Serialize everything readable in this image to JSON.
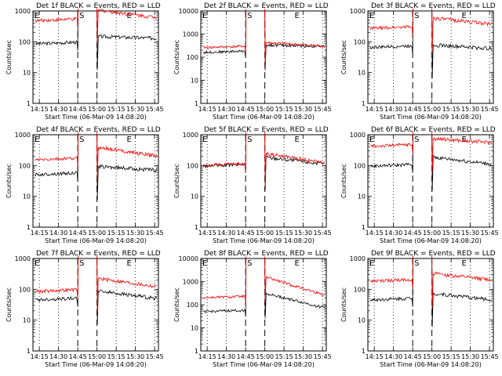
{
  "figure": {
    "ylabel": "Counts/sec",
    "xlabel": "Start Time (06-Mar-09 14:08:20)",
    "xticks": [
      "14:15",
      "14:30",
      "14:45",
      "15:00",
      "15:15",
      "15:30",
      "15:45"
    ],
    "yticks": [
      "1",
      "10",
      "100",
      "1000",
      "10000"
    ],
    "markers": {
      "S": "S",
      "E": "E"
    },
    "colors": {
      "events": "#000000",
      "lld": "#ff0000",
      "dotted": "#000000",
      "dashed": "#000000"
    }
  },
  "chart_data": [
    {
      "type": "line",
      "title": "Det 1f BLACK = Events, RED = LLD",
      "ylim": [
        1,
        1000
      ],
      "log": true,
      "marker_E": "15:25",
      "marker_start": "14:10",
      "series": [
        {
          "name": "Events",
          "color": "black",
          "pre": 85,
          "post": [
            150,
            130
          ]
        },
        {
          "name": "LLD",
          "color": "red",
          "pre": 480,
          "post": [
            1100,
            600
          ]
        }
      ]
    },
    {
      "type": "line",
      "title": "Det 2f BLACK = Events, RED = LLD",
      "ylim": [
        1,
        10000
      ],
      "log": true,
      "marker_E": "15:25",
      "marker_start": "14:10",
      "series": [
        {
          "name": "Events",
          "color": "black",
          "pre": 160,
          "post": [
            340,
            290
          ]
        },
        {
          "name": "LLD",
          "color": "red",
          "pre": 260,
          "post": [
            430,
            300
          ]
        }
      ]
    },
    {
      "type": "line",
      "title": "Det 3f BLACK = Events, RED = LLD",
      "ylim": [
        1,
        1000
      ],
      "log": true,
      "marker_E": "15:25",
      "marker_start": "14:10",
      "series": [
        {
          "name": "Events",
          "color": "black",
          "pre": 65,
          "post": [
            80,
            60
          ]
        },
        {
          "name": "LLD",
          "color": "red",
          "pre": 270,
          "post": [
            600,
            370
          ]
        }
      ]
    },
    {
      "type": "line",
      "title": "Det 4f BLACK = Events, RED = LLD",
      "ylim": [
        1,
        1000
      ],
      "log": true,
      "marker_E": "15:25",
      "marker_start": "14:10",
      "series": [
        {
          "name": "Events",
          "color": "black",
          "pre": 50,
          "post": [
            95,
            70
          ]
        },
        {
          "name": "LLD",
          "color": "red",
          "pre": 150,
          "post": [
            400,
            200
          ]
        }
      ]
    },
    {
      "type": "line",
      "title": "Det 5f BLACK = Events, RED = LLD",
      "ylim": [
        1,
        1000
      ],
      "log": true,
      "marker_E": "15:25",
      "marker_start": "14:10",
      "series": [
        {
          "name": "Events",
          "color": "black",
          "pre": 95,
          "post": [
            190,
            110
          ]
        },
        {
          "name": "LLD",
          "color": "red",
          "pre": 100,
          "post": [
            250,
            120
          ]
        }
      ]
    },
    {
      "type": "line",
      "title": "Det 6f BLACK = Events, RED = LLD",
      "ylim": [
        1,
        1000
      ],
      "log": true,
      "marker_E": "15:25",
      "marker_start": "14:10",
      "series": [
        {
          "name": "Events",
          "color": "black",
          "pre": 95,
          "post": [
            190,
            110
          ]
        },
        {
          "name": "LLD",
          "color": "red",
          "pre": 420,
          "post": [
            750,
            560
          ]
        }
      ]
    },
    {
      "type": "line",
      "title": "Det 7f BLACK = Events, RED = LLD",
      "ylim": [
        1,
        1000
      ],
      "log": true,
      "marker_E": "15:25",
      "marker_start": "14:10",
      "series": [
        {
          "name": "Events",
          "color": "black",
          "pre": 45,
          "post": [
            90,
            50
          ]
        },
        {
          "name": "LLD",
          "color": "red",
          "pre": 85,
          "post": [
            230,
            120
          ]
        }
      ]
    },
    {
      "type": "line",
      "title": "Det 8f BLACK = Events, RED = LLD",
      "ylim": [
        1,
        10000
      ],
      "log": true,
      "marker_E": "15:25",
      "marker_start": "14:10",
      "series": [
        {
          "name": "Events",
          "color": "black",
          "pre": 50,
          "post": [
            320,
            70
          ]
        },
        {
          "name": "LLD",
          "color": "red",
          "pre": 200,
          "post": [
            1600,
            250
          ]
        }
      ]
    },
    {
      "type": "line",
      "title": "Det 9f BLACK = Events, RED = LLD",
      "ylim": [
        1,
        1000
      ],
      "log": true,
      "marker_E": "15:25",
      "marker_start": "14:10",
      "series": [
        {
          "name": "Events",
          "color": "black",
          "pre": 45,
          "post": [
            75,
            45
          ]
        },
        {
          "name": "LLD",
          "color": "red",
          "pre": 180,
          "post": [
            330,
            200
          ]
        }
      ]
    }
  ]
}
